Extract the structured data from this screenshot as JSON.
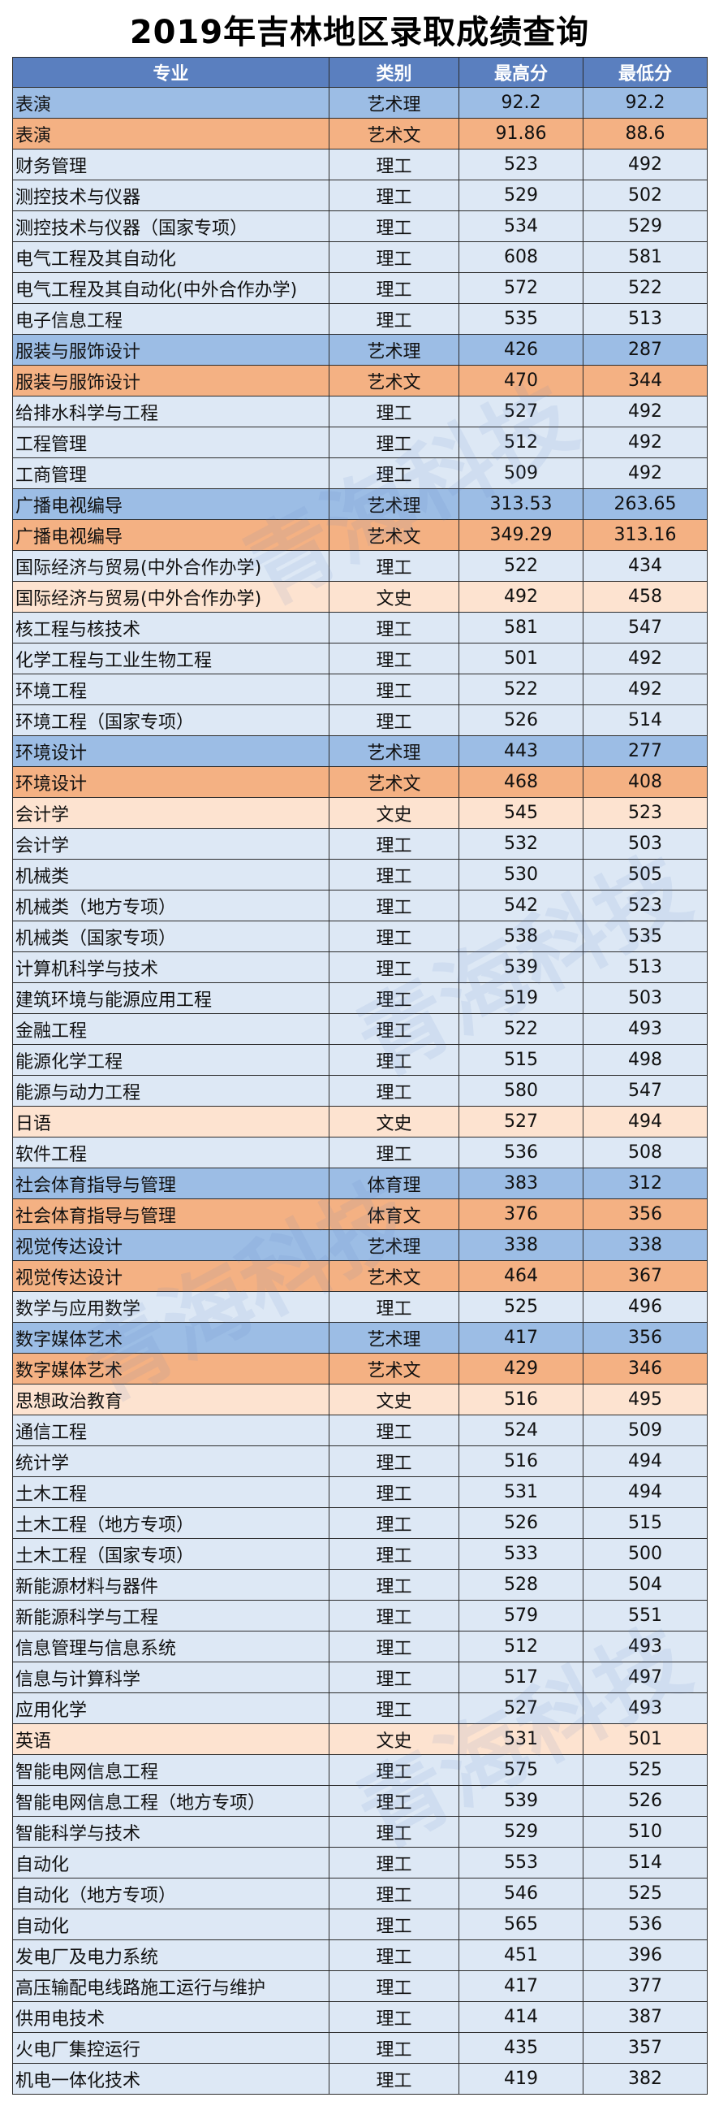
{
  "title": "2019年吉林地区录取成绩查询",
  "watermark_text": "青海科技",
  "colors": {
    "header": "#5a7fbf",
    "theory": "#dde8f5",
    "art_theory": "#9cbde5",
    "art_liberal": "#f4b183",
    "liberal": "#fde3d0"
  },
  "table": {
    "headers": [
      "专业",
      "类别",
      "最高分",
      "最低分"
    ],
    "rows": [
      {
        "major": "表演",
        "category": "艺术理",
        "max": "92.2",
        "min": "92.2"
      },
      {
        "major": "表演",
        "category": "艺术文",
        "max": "91.86",
        "min": "88.6"
      },
      {
        "major": "财务管理",
        "category": "理工",
        "max": "523",
        "min": "492"
      },
      {
        "major": "测控技术与仪器",
        "category": "理工",
        "max": "529",
        "min": "502"
      },
      {
        "major": "测控技术与仪器（国家专项）",
        "category": "理工",
        "max": "534",
        "min": "529"
      },
      {
        "major": "电气工程及其自动化",
        "category": "理工",
        "max": "608",
        "min": "581"
      },
      {
        "major": "电气工程及其自动化(中外合作办学)",
        "category": "理工",
        "max": "572",
        "min": "522"
      },
      {
        "major": "电子信息工程",
        "category": "理工",
        "max": "535",
        "min": "513"
      },
      {
        "major": "服装与服饰设计",
        "category": "艺术理",
        "max": "426",
        "min": "287"
      },
      {
        "major": "服装与服饰设计",
        "category": "艺术文",
        "max": "470",
        "min": "344"
      },
      {
        "major": "给排水科学与工程",
        "category": "理工",
        "max": "527",
        "min": "492"
      },
      {
        "major": "工程管理",
        "category": "理工",
        "max": "512",
        "min": "492"
      },
      {
        "major": "工商管理",
        "category": "理工",
        "max": "509",
        "min": "492"
      },
      {
        "major": "广播电视编导",
        "category": "艺术理",
        "max": "313.53",
        "min": "263.65"
      },
      {
        "major": "广播电视编导",
        "category": "艺术文",
        "max": "349.29",
        "min": "313.16"
      },
      {
        "major": "国际经济与贸易(中外合作办学)",
        "category": "理工",
        "max": "522",
        "min": "434"
      },
      {
        "major": "国际经济与贸易(中外合作办学)",
        "category": "文史",
        "max": "492",
        "min": "458"
      },
      {
        "major": "核工程与核技术",
        "category": "理工",
        "max": "581",
        "min": "547"
      },
      {
        "major": "化学工程与工业生物工程",
        "category": "理工",
        "max": "501",
        "min": "492"
      },
      {
        "major": "环境工程",
        "category": "理工",
        "max": "522",
        "min": "492"
      },
      {
        "major": "环境工程（国家专项）",
        "category": "理工",
        "max": "526",
        "min": "514"
      },
      {
        "major": "环境设计",
        "category": "艺术理",
        "max": "443",
        "min": "277"
      },
      {
        "major": "环境设计",
        "category": "艺术文",
        "max": "468",
        "min": "408"
      },
      {
        "major": "会计学",
        "category": "文史",
        "max": "545",
        "min": "523"
      },
      {
        "major": "会计学",
        "category": "理工",
        "max": "532",
        "min": "503"
      },
      {
        "major": "机械类",
        "category": "理工",
        "max": "530",
        "min": "505"
      },
      {
        "major": "机械类（地方专项）",
        "category": "理工",
        "max": "542",
        "min": "523"
      },
      {
        "major": "机械类（国家专项）",
        "category": "理工",
        "max": "538",
        "min": "535"
      },
      {
        "major": "计算机科学与技术",
        "category": "理工",
        "max": "539",
        "min": "513"
      },
      {
        "major": "建筑环境与能源应用工程",
        "category": "理工",
        "max": "519",
        "min": "503"
      },
      {
        "major": "金融工程",
        "category": "理工",
        "max": "522",
        "min": "493"
      },
      {
        "major": "能源化学工程",
        "category": "理工",
        "max": "515",
        "min": "498"
      },
      {
        "major": "能源与动力工程",
        "category": "理工",
        "max": "580",
        "min": "547"
      },
      {
        "major": "日语",
        "category": "文史",
        "max": "527",
        "min": "494"
      },
      {
        "major": "软件工程",
        "category": "理工",
        "max": "536",
        "min": "508"
      },
      {
        "major": "社会体育指导与管理",
        "category": "体育理",
        "max": "383",
        "min": "312"
      },
      {
        "major": "社会体育指导与管理",
        "category": "体育文",
        "max": "376",
        "min": "356"
      },
      {
        "major": "视觉传达设计",
        "category": "艺术理",
        "max": "338",
        "min": "338"
      },
      {
        "major": "视觉传达设计",
        "category": "艺术文",
        "max": "464",
        "min": "367"
      },
      {
        "major": "数学与应用数学",
        "category": "理工",
        "max": "525",
        "min": "496"
      },
      {
        "major": "数字媒体艺术",
        "category": "艺术理",
        "max": "417",
        "min": "356"
      },
      {
        "major": "数字媒体艺术",
        "category": "艺术文",
        "max": "429",
        "min": "346"
      },
      {
        "major": "思想政治教育",
        "category": "文史",
        "max": "516",
        "min": "495"
      },
      {
        "major": "通信工程",
        "category": "理工",
        "max": "524",
        "min": "509"
      },
      {
        "major": "统计学",
        "category": "理工",
        "max": "516",
        "min": "494"
      },
      {
        "major": "土木工程",
        "category": "理工",
        "max": "531",
        "min": "494"
      },
      {
        "major": "土木工程（地方专项）",
        "category": "理工",
        "max": "526",
        "min": "515"
      },
      {
        "major": "土木工程（国家专项）",
        "category": "理工",
        "max": "533",
        "min": "500"
      },
      {
        "major": "新能源材料与器件",
        "category": "理工",
        "max": "528",
        "min": "504"
      },
      {
        "major": "新能源科学与工程",
        "category": "理工",
        "max": "579",
        "min": "551"
      },
      {
        "major": "信息管理与信息系统",
        "category": "理工",
        "max": "512",
        "min": "493"
      },
      {
        "major": "信息与计算科学",
        "category": "理工",
        "max": "517",
        "min": "497"
      },
      {
        "major": "应用化学",
        "category": "理工",
        "max": "527",
        "min": "493"
      },
      {
        "major": "英语",
        "category": "文史",
        "max": "531",
        "min": "501"
      },
      {
        "major": "智能电网信息工程",
        "category": "理工",
        "max": "575",
        "min": "525"
      },
      {
        "major": "智能电网信息工程（地方专项）",
        "category": "理工",
        "max": "539",
        "min": "526"
      },
      {
        "major": "智能科学与技术",
        "category": "理工",
        "max": "529",
        "min": "510"
      },
      {
        "major": "自动化",
        "category": "理工",
        "max": "553",
        "min": "514"
      },
      {
        "major": "自动化（地方专项）",
        "category": "理工",
        "max": "546",
        "min": "525"
      },
      {
        "major": "自动化",
        "category": "理工",
        "max": "565",
        "min": "536"
      },
      {
        "major": "发电厂及电力系统",
        "category": "理工",
        "max": "451",
        "min": "396"
      },
      {
        "major": "高压输配电线路施工运行与维护",
        "category": "理工",
        "max": "417",
        "min": "377"
      },
      {
        "major": "供用电技术",
        "category": "理工",
        "max": "414",
        "min": "387"
      },
      {
        "major": "火电厂集控运行",
        "category": "理工",
        "max": "435",
        "min": "357"
      },
      {
        "major": "机电一体化技术",
        "category": "理工",
        "max": "419",
        "min": "382"
      }
    ]
  }
}
